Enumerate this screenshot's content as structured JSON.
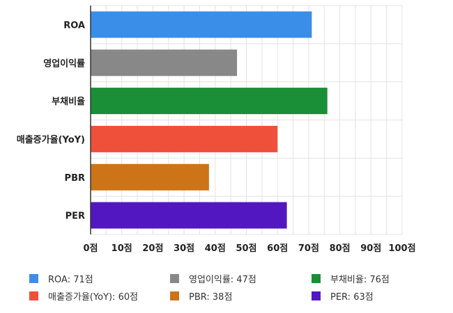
{
  "chart_data": {
    "type": "bar",
    "orientation": "horizontal",
    "categories": [
      "ROA",
      "영업이익률",
      "부채비율",
      "매출증가율(YoY)",
      "PBR",
      "PER"
    ],
    "values": [
      71,
      47,
      76,
      60,
      38,
      63
    ],
    "colors": [
      "#3b8ee8",
      "#888888",
      "#1a8f38",
      "#ef5039",
      "#cc7417",
      "#5217c0"
    ],
    "xlim": [
      0,
      100
    ],
    "grid": true,
    "x_ticks": [
      "0점",
      "10점",
      "20점",
      "30점",
      "40점",
      "50점",
      "60점",
      "70점",
      "80점",
      "90점",
      "100점"
    ],
    "legend": {
      "placement": "bottom",
      "entries": [
        "ROA: 71점",
        "영업이익률: 47점",
        "부채비율: 76점",
        "매출증가율(YoY): 60점",
        "PBR: 38점",
        "PER: 63점"
      ]
    }
  }
}
